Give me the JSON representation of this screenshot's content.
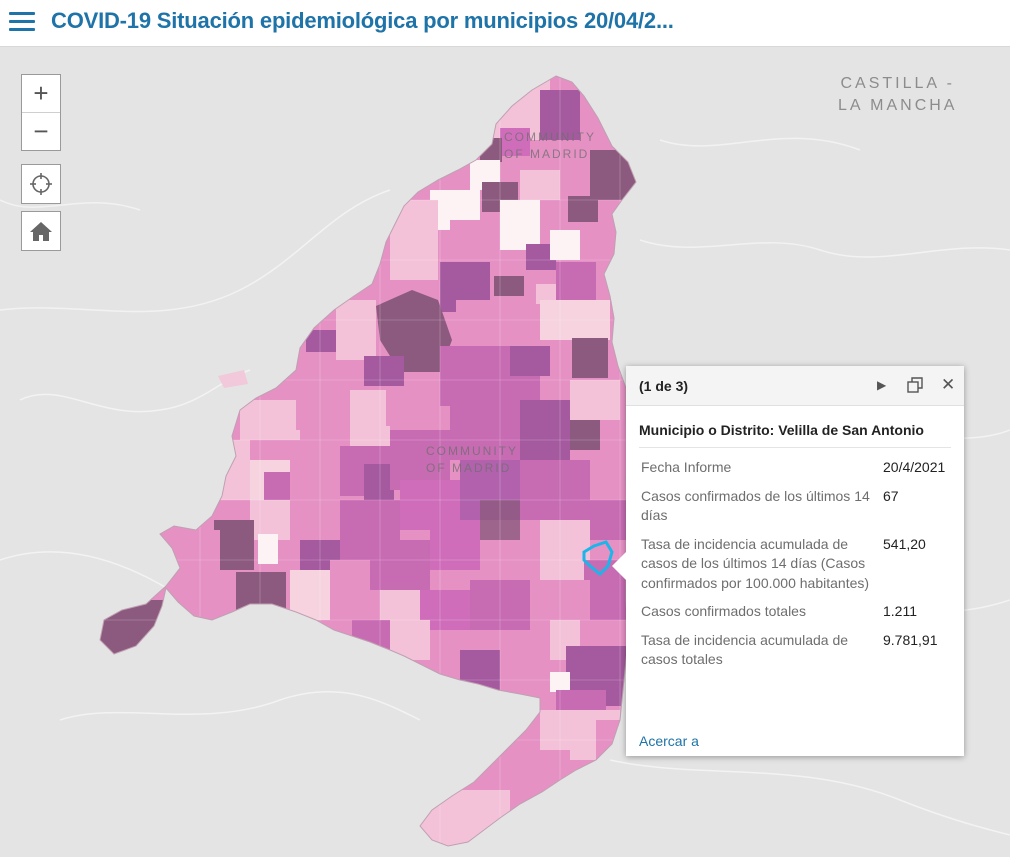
{
  "app": {
    "title": "COVID-19 Situación epidemiológica por municipios 20/04/2...",
    "menu_icon": "hamburger-menu-icon"
  },
  "map_controls": {
    "zoom_in": "+",
    "zoom_out": "−",
    "locate_icon": "crosshair-icon",
    "home_icon": "home-icon"
  },
  "map": {
    "labels": {
      "region_east_line1": "CASTILLA -",
      "region_east_line2": "LA MANCHA",
      "community_north_line1": "COMMUNITY",
      "community_north_line2": "OF MADRID",
      "community_center_line1": "COMMUNITY",
      "community_center_line2": "OF MADRID"
    },
    "colors": {
      "basemap": "#e4e4e4",
      "roads": "#ffffff",
      "class_lowest": "#fdf2f4",
      "class_low": "#f3c2d8",
      "class_mid": "#e591c4",
      "class_high": "#c76bb3",
      "class_higher": "#a55a9f",
      "class_highest": "#8c5a7e",
      "selected_outline": "#1ab6ea",
      "accent": "#1e73a8"
    }
  },
  "popup": {
    "pager": "(1 de 3)",
    "next_icon": "play-next-icon",
    "dock_icon": "dock-window-icon",
    "close_icon": "close-icon",
    "title": "Municipio o Distrito: Velilla de San Antonio",
    "attributes": [
      {
        "name": "Fecha Informe",
        "value": "20/4/2021"
      },
      {
        "name": "Casos confirmados de los últimos 14 días",
        "value": "67"
      },
      {
        "name": "Tasa de incidencia acumulada de casos de los últimos 14 días (Casos confirmados por 100.000 habitantes)",
        "value": "541,20"
      },
      {
        "name": "Casos confirmados totales",
        "value": "1.211"
      },
      {
        "name": "Tasa de incidencia acumulada de casos totales",
        "value": "9.781,91"
      }
    ],
    "zoom_link": "Acercar a"
  }
}
